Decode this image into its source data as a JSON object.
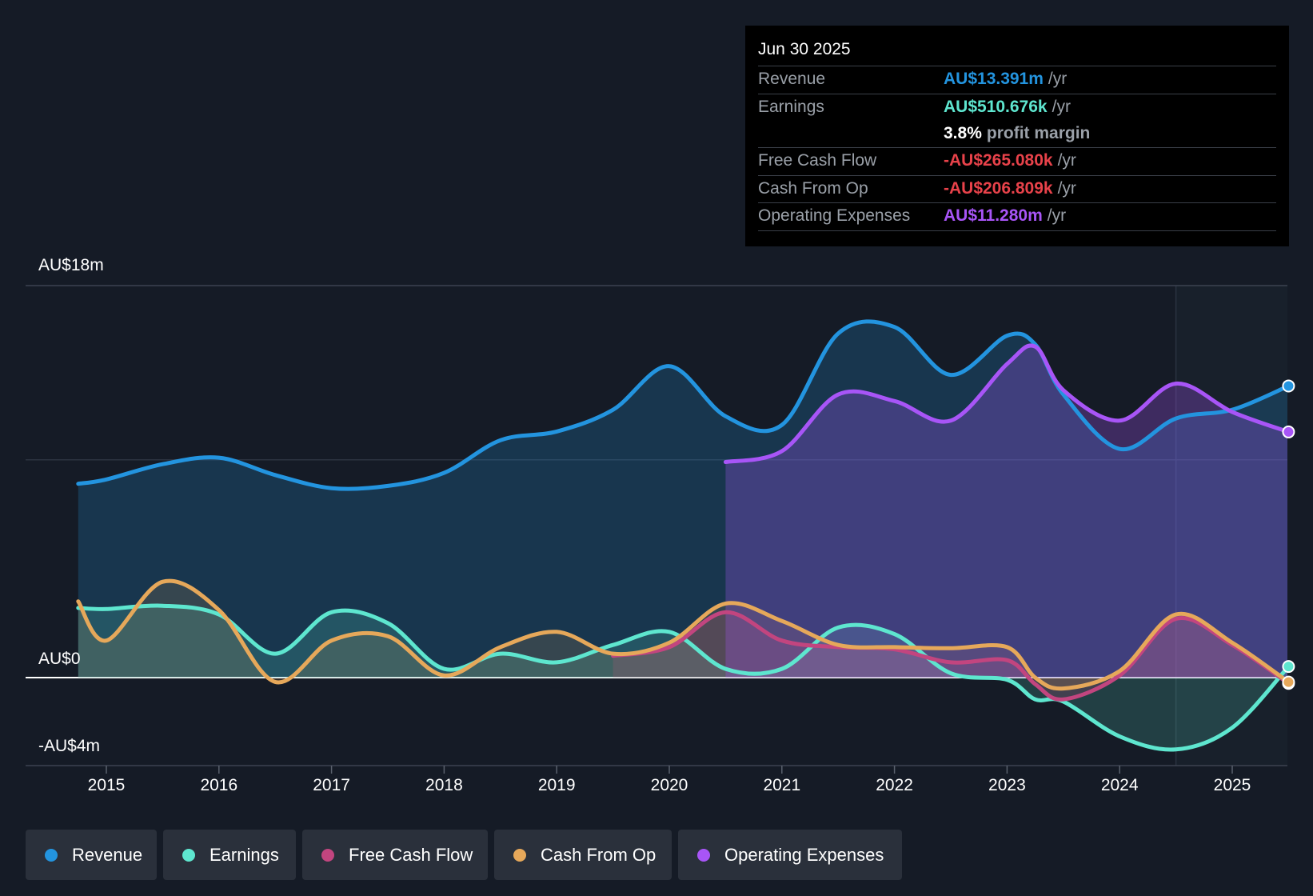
{
  "tooltip": {
    "date": "Jun 30 2025",
    "rows": [
      {
        "label": "Revenue",
        "value": "AU$13.391m",
        "unit": "/yr",
        "color": "#2394df"
      },
      {
        "label": "Earnings",
        "value": "AU$510.676k",
        "unit": "/yr",
        "color": "#5ee6cf"
      },
      {
        "label": "",
        "value": "3.8%",
        "unit": "profit margin",
        "color": "#ffffff"
      },
      {
        "label": "Free Cash Flow",
        "value": "-AU$265.080k",
        "unit": "/yr",
        "color": "#e8424a"
      },
      {
        "label": "Cash From Op",
        "value": "-AU$206.809k",
        "unit": "/yr",
        "color": "#e8424a"
      },
      {
        "label": "Operating Expenses",
        "value": "AU$11.280m",
        "unit": "/yr",
        "color": "#a855f7"
      }
    ]
  },
  "legend": [
    {
      "label": "Revenue",
      "color": "#2394df"
    },
    {
      "label": "Earnings",
      "color": "#5ee6cf"
    },
    {
      "label": "Free Cash Flow",
      "color": "#c2457f"
    },
    {
      "label": "Cash From Op",
      "color": "#e6a85a"
    },
    {
      "label": "Operating Expenses",
      "color": "#a855f7"
    }
  ],
  "chart_data": {
    "type": "line",
    "title": "",
    "xlabel": "",
    "ylabel": "",
    "ylim": [
      -4.0,
      18.0
    ],
    "xlim": [
      2014.55,
      2025.5
    ],
    "y_tick_labels": [
      "AU$18m",
      "AU$0",
      "-AU$4m"
    ],
    "y_ticks": [
      18,
      0,
      -4
    ],
    "x_tick_labels": [
      "2015",
      "2016",
      "2017",
      "2018",
      "2019",
      "2020",
      "2021",
      "2022",
      "2023",
      "2024",
      "2025"
    ],
    "x_ticks": [
      2015,
      2016,
      2017,
      2018,
      2019,
      2020,
      2021,
      2022,
      2023,
      2024,
      2025
    ],
    "highlight_start": 2024.5,
    "series": [
      {
        "name": "Revenue",
        "color": "#2394df",
        "x": [
          2014.75,
          2015.0,
          2015.5,
          2016.0,
          2016.5,
          2017.0,
          2017.5,
          2018.0,
          2018.5,
          2019.0,
          2019.5,
          2020.0,
          2020.5,
          2021.0,
          2021.5,
          2022.0,
          2022.5,
          2023.0,
          2023.25,
          2023.5,
          2024.0,
          2024.5,
          2025.0,
          2025.5
        ],
        "values": [
          8.9,
          9.1,
          9.8,
          10.1,
          9.3,
          8.7,
          8.8,
          9.4,
          10.9,
          11.3,
          12.3,
          14.3,
          12.0,
          11.6,
          15.8,
          16.1,
          13.9,
          15.7,
          15.3,
          13.0,
          10.5,
          11.9,
          12.3,
          13.391
        ]
      },
      {
        "name": "Earnings",
        "color": "#5ee6cf",
        "x": [
          2014.75,
          2015.0,
          2015.5,
          2016.0,
          2016.5,
          2017.0,
          2017.5,
          2018.0,
          2018.5,
          2019.0,
          2019.5,
          2020.0,
          2020.5,
          2021.0,
          2021.5,
          2022.0,
          2022.5,
          2023.0,
          2023.25,
          2023.5,
          2024.0,
          2024.5,
          2025.0,
          2025.5
        ],
        "values": [
          3.2,
          3.15,
          3.3,
          2.9,
          1.1,
          3.0,
          2.5,
          0.4,
          1.1,
          0.7,
          1.5,
          2.1,
          0.4,
          0.4,
          2.3,
          2.0,
          0.2,
          -0.1,
          -1.0,
          -1.1,
          -2.7,
          -3.3,
          -2.3,
          0.51
        ]
      },
      {
        "name": "Free Cash Flow",
        "color": "#c2457f",
        "x": [
          2019.5,
          2020.0,
          2020.5,
          2021.0,
          2021.5,
          2022.0,
          2022.5,
          2023.0,
          2023.25,
          2023.5,
          2024.0,
          2024.5,
          2025.0,
          2025.5
        ],
        "values": [
          1.0,
          1.4,
          3.0,
          1.7,
          1.4,
          1.3,
          0.7,
          0.8,
          -0.3,
          -1.0,
          0.1,
          2.7,
          1.5,
          -0.265
        ]
      },
      {
        "name": "Cash From Op",
        "color": "#e6a85a",
        "x": [
          2014.75,
          2015.0,
          2015.5,
          2016.0,
          2016.5,
          2017.0,
          2017.5,
          2018.0,
          2018.5,
          2019.0,
          2019.5,
          2020.0,
          2020.5,
          2021.0,
          2021.5,
          2022.0,
          2022.5,
          2023.0,
          2023.25,
          2023.5,
          2024.0,
          2024.5,
          2025.0,
          2025.5
        ],
        "values": [
          3.5,
          1.7,
          4.4,
          3.1,
          -0.2,
          1.7,
          1.9,
          0.1,
          1.4,
          2.1,
          1.1,
          1.6,
          3.4,
          2.6,
          1.5,
          1.4,
          1.35,
          1.4,
          0.0,
          -0.5,
          0.3,
          2.9,
          1.6,
          -0.207
        ]
      },
      {
        "name": "Operating Expenses",
        "color": "#a855f7",
        "x": [
          2020.5,
          2021.0,
          2021.5,
          2022.0,
          2022.5,
          2023.0,
          2023.25,
          2023.5,
          2024.0,
          2024.5,
          2025.0,
          2025.5
        ],
        "values": [
          9.9,
          10.4,
          13.0,
          12.7,
          11.8,
          14.4,
          15.2,
          13.2,
          11.8,
          13.5,
          12.2,
          11.28
        ]
      }
    ]
  }
}
